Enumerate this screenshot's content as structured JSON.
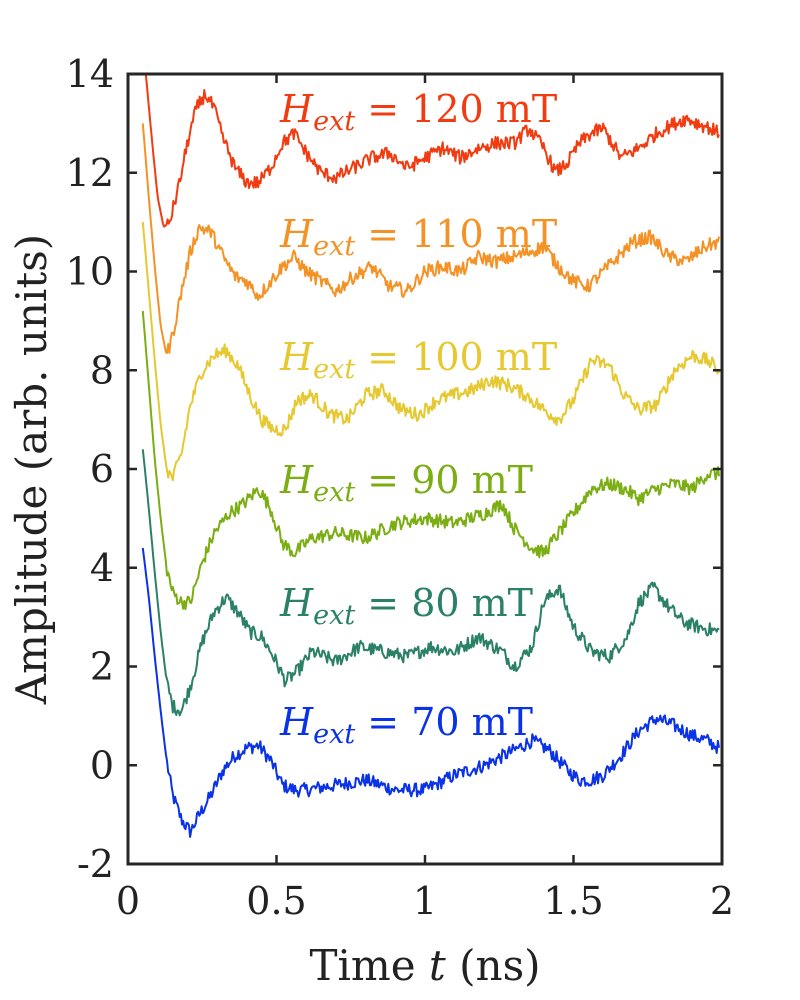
{
  "chart_data": {
    "type": "line",
    "xlabel_prefix": "Time ",
    "xlabel_var": "t",
    "xlabel_suffix": " (ns)",
    "ylabel": "Amplitude (arb. units)",
    "xlim": [
      0,
      2
    ],
    "ylim": [
      -2,
      14
    ],
    "xticks": [
      0,
      0.5,
      1,
      1.5,
      2
    ],
    "xtick_labels": [
      "0",
      "0.5",
      "1",
      "1.5",
      "2"
    ],
    "yticks": [
      -2,
      0,
      2,
      4,
      6,
      8,
      10,
      12,
      14
    ],
    "ytick_labels": [
      "-2",
      "0",
      "2",
      "4",
      "6",
      "8",
      "10",
      "12",
      "14"
    ],
    "grid": false,
    "series": [
      {
        "name": "70 mT",
        "label_symbol": "H",
        "label_sub": "ext",
        "label_text": " = 70 mT",
        "color": "#0a32e6",
        "x": [
          0.05,
          0.07,
          0.09,
          0.11,
          0.13,
          0.15,
          0.18,
          0.21,
          0.24,
          0.28,
          0.32,
          0.36,
          0.4,
          0.44,
          0.48,
          0.52,
          0.56,
          0.6,
          0.7,
          0.8,
          0.9,
          1.0,
          1.1,
          1.2,
          1.3,
          1.36,
          1.42,
          1.48,
          1.52,
          1.56,
          1.6,
          1.66,
          1.72,
          1.78,
          1.84,
          1.9,
          1.95,
          1.99
        ],
        "values": [
          4.4,
          3.4,
          2.2,
          1.1,
          0.1,
          -0.6,
          -1.1,
          -1.35,
          -1.0,
          -0.6,
          -0.1,
          0.2,
          0.35,
          0.4,
          0.1,
          -0.4,
          -0.5,
          -0.5,
          -0.4,
          -0.3,
          -0.5,
          -0.5,
          -0.2,
          0.0,
          0.3,
          0.5,
          0.3,
          -0.1,
          -0.3,
          -0.3,
          -0.2,
          0.2,
          0.7,
          0.95,
          0.8,
          0.6,
          0.5,
          0.35
        ]
      },
      {
        "name": "80 mT",
        "label_symbol": "H",
        "label_sub": "ext",
        "label_text": " = 80 mT",
        "color": "#2b8068",
        "x": [
          0.05,
          0.07,
          0.09,
          0.11,
          0.13,
          0.15,
          0.18,
          0.21,
          0.25,
          0.29,
          0.33,
          0.37,
          0.41,
          0.45,
          0.49,
          0.53,
          0.57,
          0.62,
          0.7,
          0.78,
          0.86,
          0.94,
          1.02,
          1.1,
          1.18,
          1.26,
          1.3,
          1.36,
          1.4,
          1.45,
          1.5,
          1.56,
          1.62,
          1.68,
          1.72,
          1.77,
          1.82,
          1.87,
          1.92,
          1.99
        ],
        "values": [
          6.4,
          5.2,
          3.9,
          2.7,
          1.7,
          1.2,
          1.1,
          1.6,
          2.5,
          3.1,
          3.4,
          3.1,
          2.7,
          2.6,
          2.2,
          1.7,
          1.9,
          2.3,
          2.1,
          2.4,
          2.3,
          2.2,
          2.4,
          2.3,
          2.6,
          2.3,
          2.0,
          2.4,
          3.3,
          3.6,
          2.8,
          2.3,
          2.2,
          2.6,
          3.3,
          3.6,
          3.2,
          2.9,
          2.8,
          2.7
        ]
      },
      {
        "name": "90 mT",
        "label_symbol": "H",
        "label_sub": "ext",
        "label_text": " = 90 mT",
        "color": "#7aae12",
        "x": [
          0.05,
          0.07,
          0.09,
          0.11,
          0.13,
          0.15,
          0.18,
          0.21,
          0.25,
          0.29,
          0.34,
          0.39,
          0.44,
          0.48,
          0.52,
          0.56,
          0.62,
          0.7,
          0.8,
          0.9,
          1.0,
          1.1,
          1.2,
          1.26,
          1.3,
          1.36,
          1.4,
          1.45,
          1.5,
          1.56,
          1.62,
          1.67,
          1.72,
          1.78,
          1.84,
          1.9,
          1.95,
          1.99
        ],
        "values": [
          9.2,
          7.7,
          6.2,
          5.0,
          4.0,
          3.5,
          3.3,
          3.3,
          4.1,
          4.7,
          5.1,
          5.3,
          5.6,
          5.2,
          4.5,
          4.3,
          4.6,
          4.7,
          4.6,
          4.9,
          5.0,
          4.9,
          5.1,
          5.3,
          4.8,
          4.4,
          4.3,
          4.7,
          5.1,
          5.6,
          5.7,
          5.6,
          5.4,
          5.6,
          5.7,
          5.6,
          5.9,
          5.9
        ]
      },
      {
        "name": "100 mT",
        "label_symbol": "H",
        "label_sub": "ext",
        "label_text": " = 100 mT",
        "color": "#e6c830",
        "x": [
          0.05,
          0.07,
          0.09,
          0.11,
          0.13,
          0.15,
          0.18,
          0.21,
          0.25,
          0.29,
          0.33,
          0.37,
          0.41,
          0.45,
          0.49,
          0.53,
          0.57,
          0.62,
          0.68,
          0.74,
          0.8,
          0.86,
          0.92,
          0.98,
          1.04,
          1.1,
          1.16,
          1.22,
          1.28,
          1.34,
          1.4,
          1.45,
          1.5,
          1.56,
          1.62,
          1.67,
          1.72,
          1.78,
          1.84,
          1.9,
          1.95,
          1.99
        ],
        "values": [
          11.0,
          9.6,
          8.2,
          6.9,
          6.0,
          5.8,
          6.3,
          7.3,
          8.0,
          8.3,
          8.4,
          8.1,
          7.5,
          7.0,
          6.8,
          6.8,
          7.4,
          7.5,
          7.1,
          7.0,
          7.5,
          7.6,
          7.2,
          7.1,
          7.4,
          7.5,
          7.6,
          7.8,
          7.7,
          7.5,
          7.2,
          7.0,
          7.4,
          8.2,
          8.1,
          7.5,
          7.2,
          7.3,
          8.0,
          8.3,
          8.2,
          8.0
        ]
      },
      {
        "name": "110 mT",
        "label_symbol": "H",
        "label_sub": "ext",
        "label_text": " = 110 mT",
        "color": "#f59226",
        "x": [
          0.05,
          0.07,
          0.09,
          0.11,
          0.13,
          0.15,
          0.18,
          0.21,
          0.24,
          0.28,
          0.32,
          0.36,
          0.4,
          0.44,
          0.48,
          0.52,
          0.56,
          0.6,
          0.65,
          0.7,
          0.76,
          0.82,
          0.88,
          0.94,
          1.0,
          1.06,
          1.12,
          1.18,
          1.24,
          1.3,
          1.35,
          1.4,
          1.45,
          1.5,
          1.55,
          1.6,
          1.65,
          1.7,
          1.76,
          1.82,
          1.88,
          1.94,
          1.99
        ],
        "values": [
          13.0,
          11.5,
          10.1,
          8.9,
          8.3,
          8.7,
          9.6,
          10.4,
          10.9,
          10.8,
          10.3,
          9.9,
          9.8,
          9.5,
          9.8,
          10.1,
          10.3,
          10.0,
          9.8,
          9.6,
          9.9,
          10.1,
          9.7,
          9.6,
          10.0,
          10.1,
          10.0,
          10.3,
          10.2,
          10.3,
          10.4,
          10.5,
          10.1,
          9.8,
          9.7,
          10.0,
          10.3,
          10.6,
          10.7,
          10.3,
          10.2,
          10.5,
          10.6
        ]
      },
      {
        "name": "120 mT",
        "label_symbol": "H",
        "label_sub": "ext",
        "label_text": " = 120 mT",
        "color": "#f03c10",
        "x": [
          0.06,
          0.08,
          0.1,
          0.12,
          0.14,
          0.17,
          0.2,
          0.23,
          0.26,
          0.29,
          0.32,
          0.36,
          0.4,
          0.44,
          0.48,
          0.52,
          0.56,
          0.6,
          0.65,
          0.7,
          0.76,
          0.82,
          0.88,
          0.94,
          1.0,
          1.06,
          1.12,
          1.18,
          1.24,
          1.3,
          1.35,
          1.4,
          1.44,
          1.48,
          1.52,
          1.56,
          1.6,
          1.66,
          1.72,
          1.78,
          1.84,
          1.88,
          1.92,
          1.96,
          1.99
        ],
        "values": [
          14.0,
          12.7,
          11.5,
          10.9,
          11.0,
          11.7,
          12.6,
          13.3,
          13.6,
          13.3,
          12.7,
          12.1,
          11.8,
          11.8,
          12.1,
          12.6,
          12.8,
          12.4,
          12.0,
          11.9,
          12.1,
          12.3,
          12.4,
          12.1,
          12.3,
          12.5,
          12.3,
          12.5,
          12.6,
          12.6,
          12.9,
          12.5,
          12.0,
          12.2,
          12.6,
          12.8,
          12.9,
          12.3,
          12.5,
          12.8,
          13.0,
          13.1,
          13.0,
          12.9,
          12.8
        ]
      }
    ]
  }
}
